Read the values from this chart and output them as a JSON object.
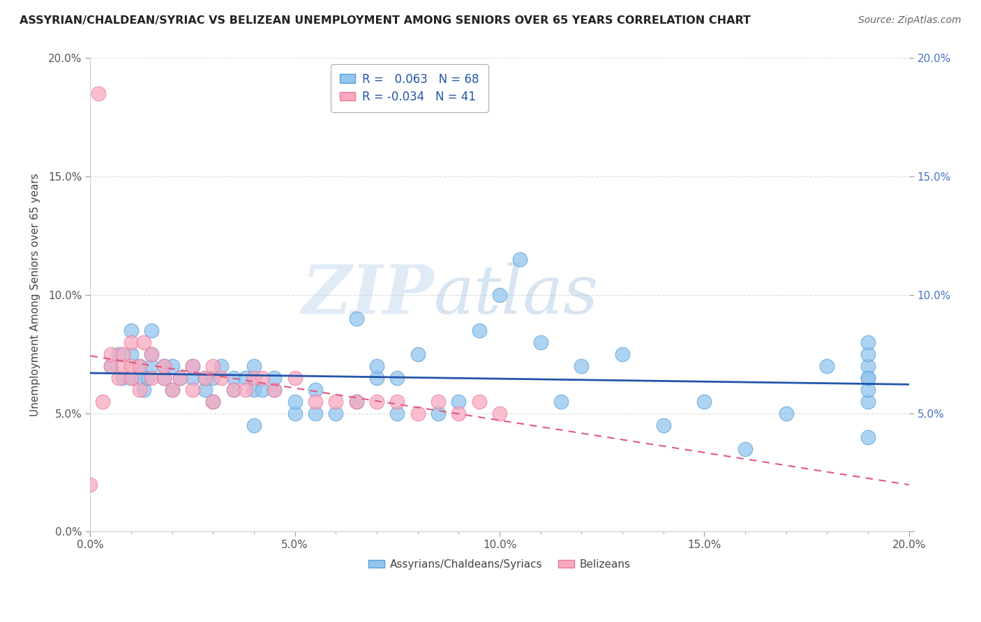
{
  "title": "ASSYRIAN/CHALDEAN/SYRIAC VS BELIZEAN UNEMPLOYMENT AMONG SENIORS OVER 65 YEARS CORRELATION CHART",
  "source": "Source: ZipAtlas.com",
  "ylabel": "Unemployment Among Seniors over 65 years",
  "xlim": [
    0.0,
    0.2
  ],
  "ylim": [
    0.0,
    0.2
  ],
  "xtick_labels": [
    "0.0%",
    "",
    "",
    "",
    "",
    "5.0%",
    "",
    "",
    "",
    "",
    "10.0%",
    "",
    "",
    "",
    "",
    "15.0%",
    "",
    "",
    "",
    "",
    "20.0%"
  ],
  "xtick_vals": [
    0.0,
    0.01,
    0.02,
    0.03,
    0.04,
    0.05,
    0.06,
    0.07,
    0.08,
    0.09,
    0.1,
    0.11,
    0.12,
    0.13,
    0.14,
    0.15,
    0.16,
    0.17,
    0.18,
    0.19,
    0.2
  ],
  "xtick_major_labels": [
    "0.0%",
    "5.0%",
    "10.0%",
    "15.0%",
    "20.0%"
  ],
  "xtick_major_vals": [
    0.0,
    0.05,
    0.1,
    0.15,
    0.2
  ],
  "ytick_major_vals": [
    0.0,
    0.05,
    0.1,
    0.15,
    0.2
  ],
  "ytick_labels_left": [
    "0.0%",
    "5.0%",
    "10.0%",
    "15.0%",
    "20.0%"
  ],
  "ytick_labels_right": [
    "",
    "5.0%",
    "10.0%",
    "15.0%",
    "20.0%"
  ],
  "blue_color": "#92C5F0",
  "pink_color": "#F9AABF",
  "blue_edge_color": "#5A9FD4",
  "pink_edge_color": "#E87898",
  "blue_line_color": "#2255AA",
  "pink_line_color": "#E05880",
  "legend_blue_R": "0.063",
  "legend_blue_N": "68",
  "legend_pink_R": "-0.034",
  "legend_pink_N": "41",
  "watermark": "ZIPatlas",
  "blue_scatter_x": [
    0.005,
    0.007,
    0.008,
    0.01,
    0.01,
    0.01,
    0.012,
    0.012,
    0.013,
    0.014,
    0.015,
    0.015,
    0.015,
    0.018,
    0.018,
    0.02,
    0.02,
    0.022,
    0.025,
    0.025,
    0.028,
    0.028,
    0.03,
    0.03,
    0.032,
    0.035,
    0.035,
    0.038,
    0.04,
    0.04,
    0.04,
    0.042,
    0.045,
    0.045,
    0.05,
    0.05,
    0.055,
    0.055,
    0.06,
    0.065,
    0.065,
    0.07,
    0.07,
    0.075,
    0.075,
    0.08,
    0.085,
    0.09,
    0.095,
    0.1,
    0.105,
    0.11,
    0.115,
    0.12,
    0.13,
    0.14,
    0.15,
    0.16,
    0.17,
    0.18,
    0.19,
    0.19,
    0.19,
    0.19,
    0.19,
    0.19,
    0.19,
    0.19
  ],
  "blue_scatter_y": [
    0.07,
    0.075,
    0.065,
    0.065,
    0.075,
    0.085,
    0.065,
    0.07,
    0.06,
    0.065,
    0.07,
    0.075,
    0.085,
    0.065,
    0.07,
    0.06,
    0.07,
    0.065,
    0.065,
    0.07,
    0.06,
    0.065,
    0.055,
    0.065,
    0.07,
    0.06,
    0.065,
    0.065,
    0.045,
    0.06,
    0.07,
    0.06,
    0.06,
    0.065,
    0.05,
    0.055,
    0.05,
    0.06,
    0.05,
    0.055,
    0.09,
    0.065,
    0.07,
    0.05,
    0.065,
    0.075,
    0.05,
    0.055,
    0.085,
    0.1,
    0.115,
    0.08,
    0.055,
    0.07,
    0.075,
    0.045,
    0.055,
    0.035,
    0.05,
    0.07,
    0.055,
    0.06,
    0.065,
    0.07,
    0.075,
    0.08,
    0.065,
    0.04
  ],
  "pink_scatter_x": [
    0.0,
    0.003,
    0.005,
    0.005,
    0.007,
    0.008,
    0.008,
    0.01,
    0.01,
    0.01,
    0.012,
    0.012,
    0.013,
    0.015,
    0.015,
    0.018,
    0.018,
    0.02,
    0.022,
    0.025,
    0.025,
    0.028,
    0.03,
    0.03,
    0.032,
    0.035,
    0.038,
    0.04,
    0.042,
    0.045,
    0.05,
    0.055,
    0.06,
    0.065,
    0.07,
    0.075,
    0.08,
    0.085,
    0.09,
    0.095,
    0.1
  ],
  "pink_scatter_y": [
    0.02,
    0.055,
    0.07,
    0.075,
    0.065,
    0.07,
    0.075,
    0.065,
    0.07,
    0.08,
    0.06,
    0.07,
    0.08,
    0.065,
    0.075,
    0.065,
    0.07,
    0.06,
    0.065,
    0.06,
    0.07,
    0.065,
    0.055,
    0.07,
    0.065,
    0.06,
    0.06,
    0.065,
    0.065,
    0.06,
    0.065,
    0.055,
    0.055,
    0.055,
    0.055,
    0.055,
    0.05,
    0.055,
    0.05,
    0.055,
    0.05
  ],
  "pink_outlier_x": [
    0.002
  ],
  "pink_outlier_y": [
    0.185
  ]
}
